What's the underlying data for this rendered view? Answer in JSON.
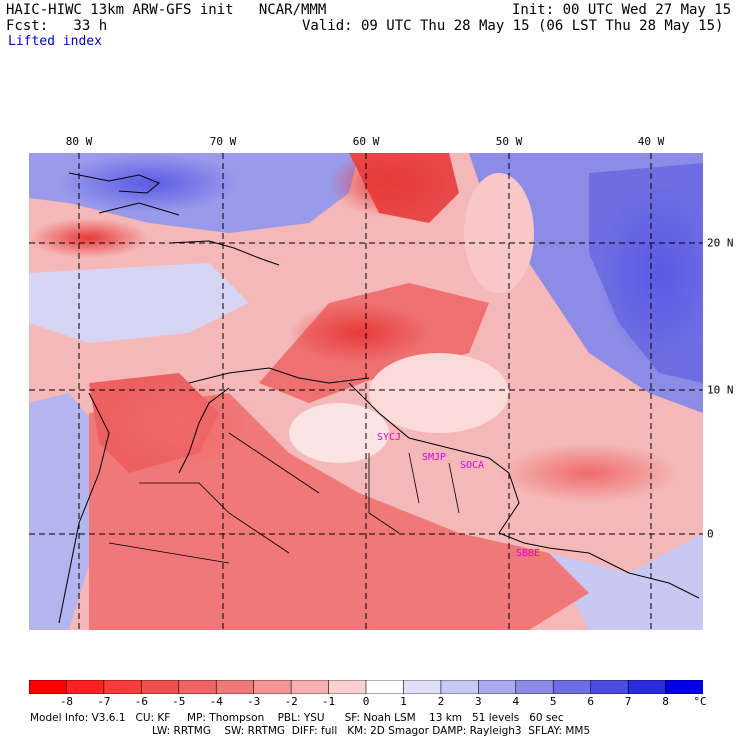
{
  "header": {
    "title": "HAIC-HIWC 13km ARW-GFS init   NCAR/MMM",
    "init": "Init: 00 UTC Wed 27 May 15",
    "fcst": "Fcst:   33 h",
    "valid": "Valid: 09 UTC Thu 28 May 15 (06 LST Thu 28 May 15)",
    "field": "Lifted index"
  },
  "map": {
    "lon_labels": [
      "80 W",
      "70 W",
      "60 W",
      "50 W",
      "40 W"
    ],
    "lat_labels": [
      "20 N",
      "10 N",
      "0"
    ],
    "stations": [
      "SYCJ",
      "SMJP",
      "SOCA",
      "SBBE"
    ]
  },
  "colorbar": {
    "ticks": [
      "-8",
      "-7",
      "-6",
      "-5",
      "-4",
      "-3",
      "-2",
      "-1",
      "0",
      "1",
      "2",
      "3",
      "4",
      "5",
      "6",
      "7",
      "8"
    ],
    "unit": "°C",
    "colors": [
      "#ff0000",
      "#ff2222",
      "#ff3a3a",
      "#f24e4e",
      "#f06464",
      "#f07a7a",
      "#f59595",
      "#f8b0b0",
      "#fbd0d0",
      "#ffffff",
      "#e0e0f8",
      "#c8c8f4",
      "#aaaaee",
      "#8c8ce8",
      "#6e6ee4",
      "#4c4ce0",
      "#2a2ae0",
      "#0000e8"
    ]
  },
  "footer": {
    "line1": "Model Info: V3.6.1   CU: KF     MP: Thompson    PBL: YSU      SF: Noah LSM    13 km   51 levels   60 sec",
    "line2": "LW: RRTMG    SW: RRTMG  DIFF: full   KM: 2D Smagor DAMP: Rayleigh3  SFLAY: MM5"
  }
}
